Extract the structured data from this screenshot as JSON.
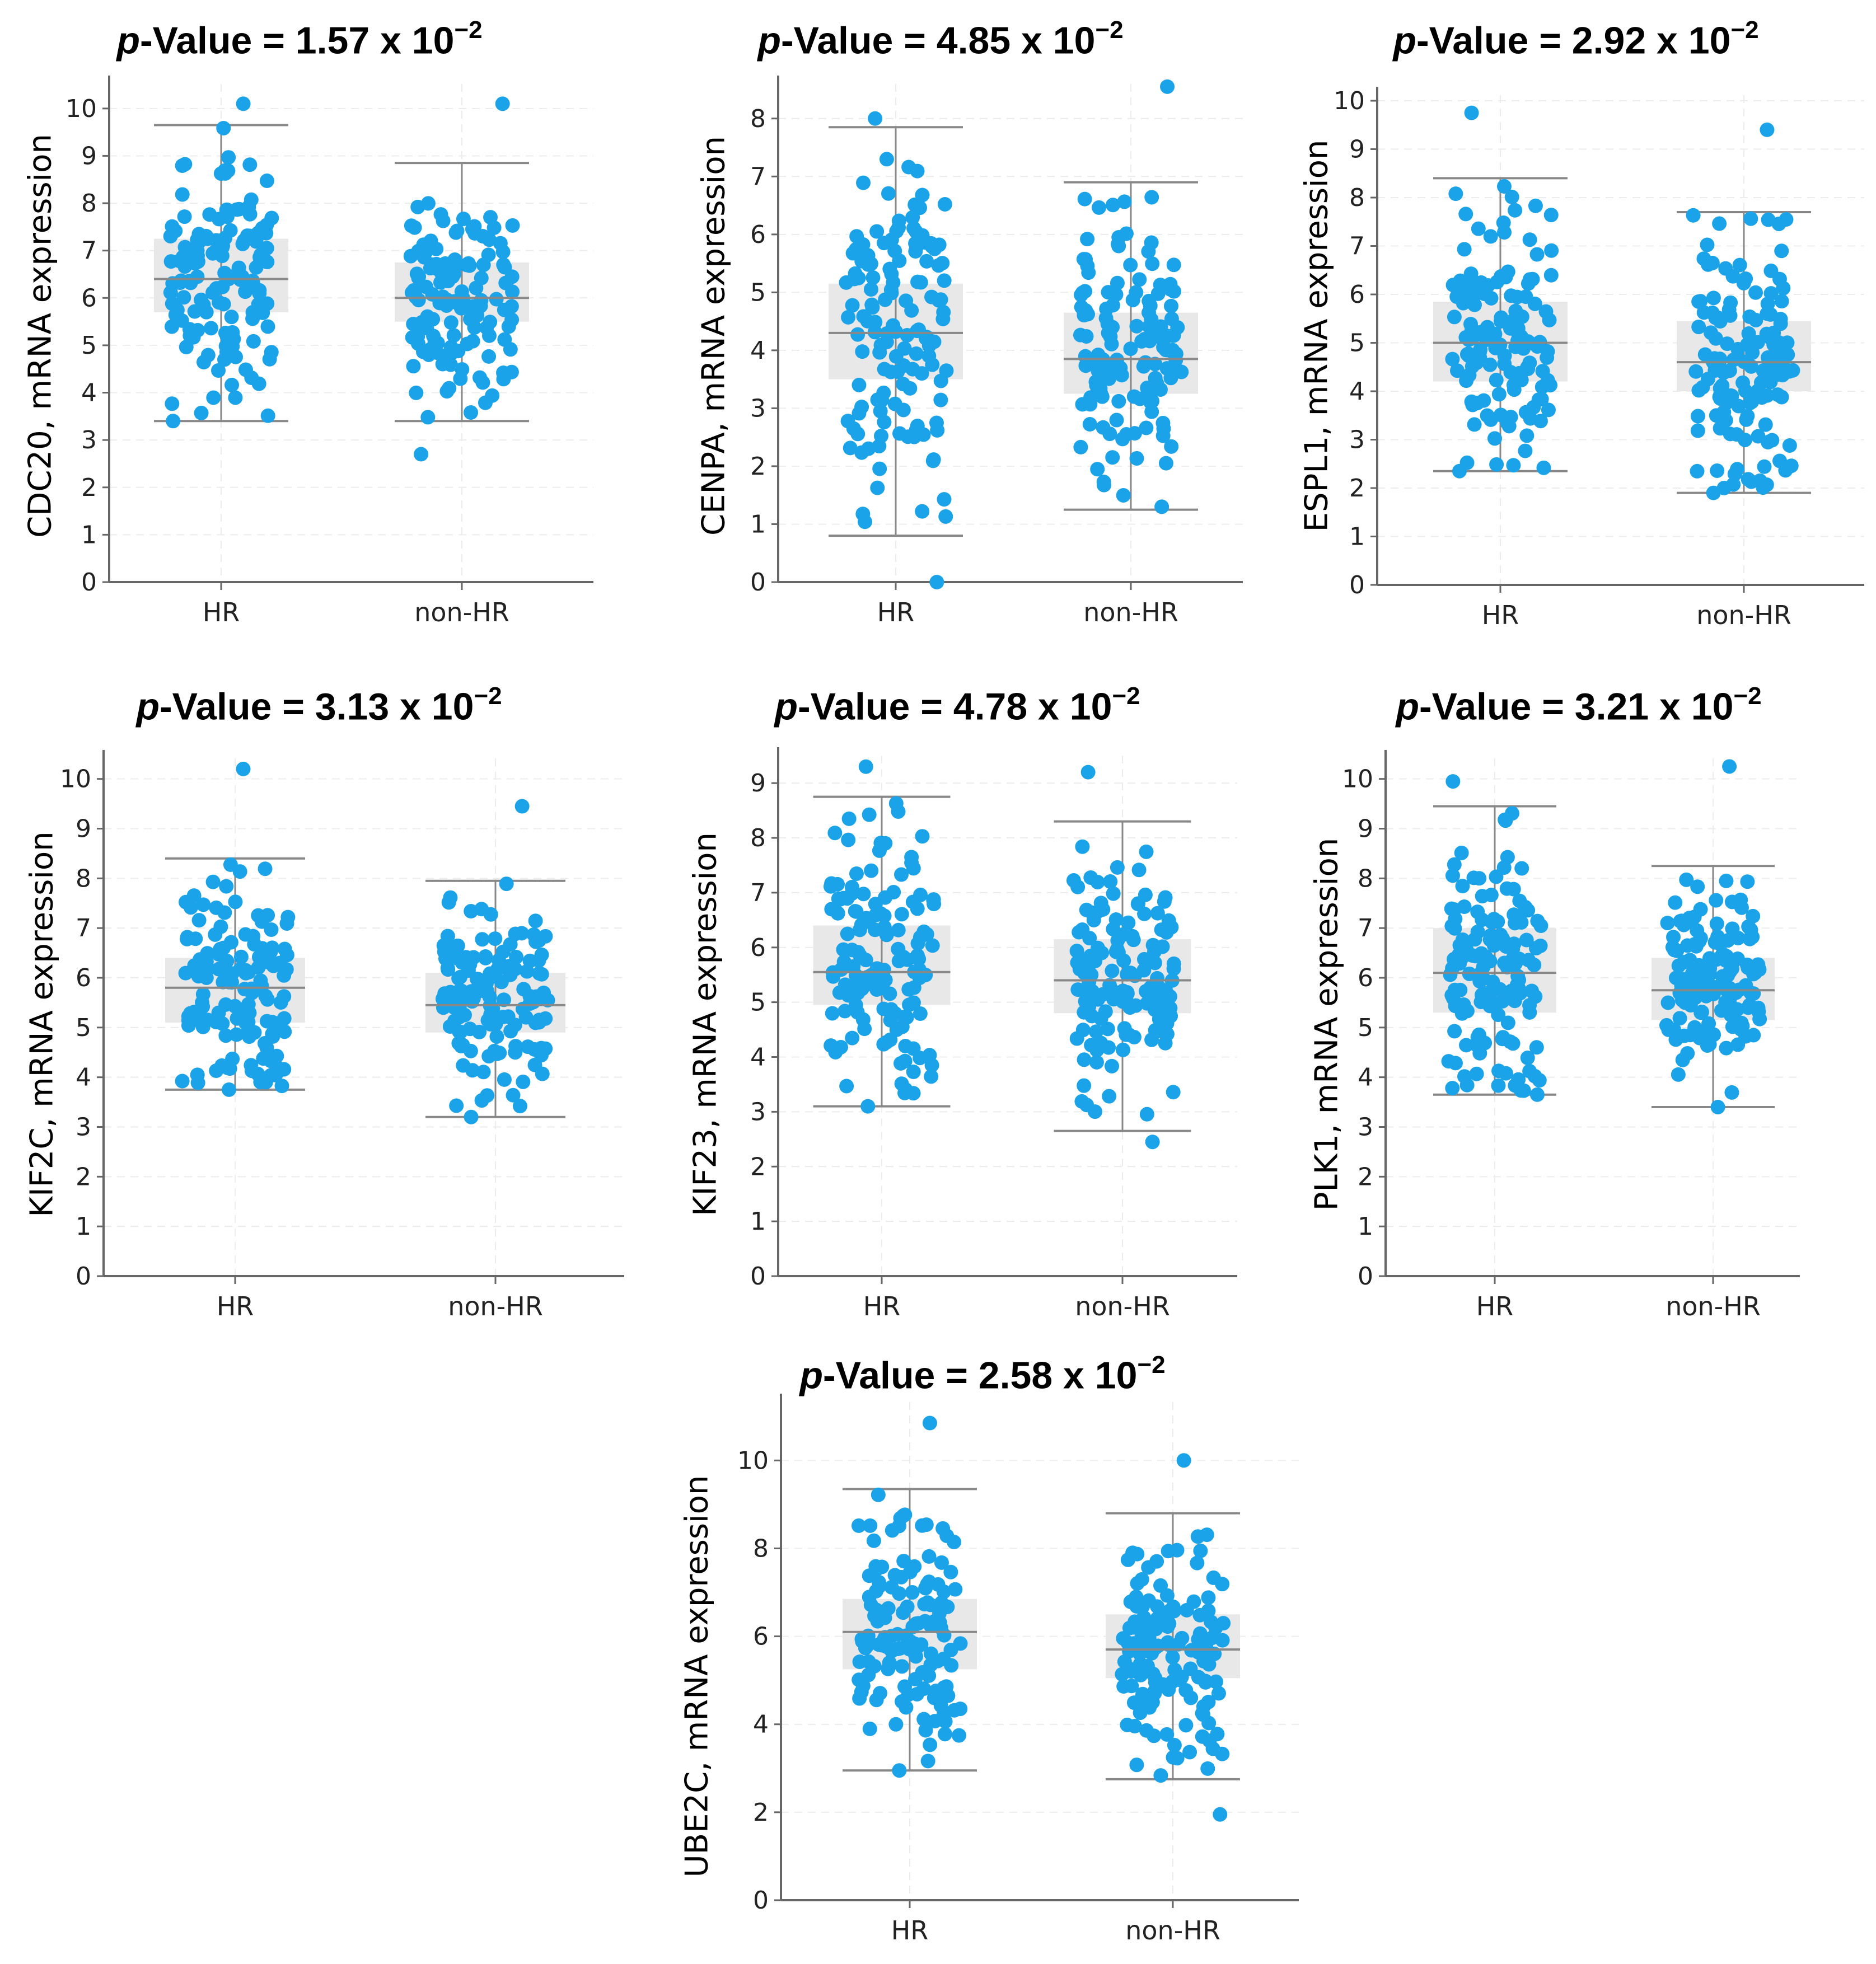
{
  "style": {
    "dot_color": "#1aa3e8",
    "box_color": "#e8e8e8",
    "line_color": "#888888"
  },
  "chart_data": [
    {
      "type": "box-scatter",
      "gene": "CDC20",
      "ylabel": "CDC20, mRNA expression",
      "pvalue": {
        "prefix": "p",
        "rest": "-Value = 1.57 x 10",
        "exp": "−2"
      },
      "categories": [
        "HR",
        "non-HR"
      ],
      "ylim": [
        0,
        10.4
      ],
      "yticks": [
        0,
        1,
        2,
        3,
        4,
        5,
        6,
        7,
        8,
        9,
        10
      ],
      "groups": [
        {
          "name": "HR",
          "whisker_low": 3.4,
          "q1": 5.7,
          "median": 6.4,
          "q3": 7.25,
          "whisker_high": 9.65,
          "min": 3.4,
          "max": 10.1,
          "n": 140
        },
        {
          "name": "non-HR",
          "whisker_low": 3.4,
          "q1": 5.5,
          "median": 6.0,
          "q3": 6.75,
          "whisker_high": 8.85,
          "min": 2.7,
          "max": 10.1,
          "n": 140
        }
      ]
    },
    {
      "type": "box-scatter",
      "gene": "CENPA",
      "ylabel": "CENPA, mRNA expression",
      "pvalue": {
        "prefix": "p",
        "rest": "-Value = 4.85 x 10",
        "exp": "−2"
      },
      "categories": [
        "HR",
        "non-HR"
      ],
      "ylim": [
        0,
        8.5
      ],
      "yticks": [
        0,
        1,
        2,
        3,
        4,
        5,
        6,
        7,
        8
      ],
      "groups": [
        {
          "name": "HR",
          "whisker_low": 0.8,
          "q1": 3.5,
          "median": 4.3,
          "q3": 5.15,
          "whisker_high": 7.85,
          "min": 0.0,
          "max": 8.0,
          "n": 140
        },
        {
          "name": "non-HR",
          "whisker_low": 1.25,
          "q1": 3.25,
          "median": 3.85,
          "q3": 4.65,
          "whisker_high": 6.9,
          "min": 1.3,
          "max": 8.55,
          "n": 140
        }
      ]
    },
    {
      "type": "box-scatter",
      "gene": "ESPL1",
      "ylabel": "ESPL1, mRNA expression",
      "pvalue": {
        "prefix": "p",
        "rest": "-Value = 2.92 x 10",
        "exp": "−2"
      },
      "categories": [
        "HR",
        "non-HR"
      ],
      "ylim": [
        0,
        10
      ],
      "yticks": [
        0,
        1,
        2,
        3,
        4,
        5,
        6,
        7,
        8,
        9,
        10
      ],
      "groups": [
        {
          "name": "HR",
          "whisker_low": 2.35,
          "q1": 4.2,
          "median": 5.0,
          "q3": 5.85,
          "whisker_high": 8.4,
          "min": 2.35,
          "max": 9.75,
          "n": 140
        },
        {
          "name": "non-HR",
          "whisker_low": 1.9,
          "q1": 4.0,
          "median": 4.6,
          "q3": 5.45,
          "whisker_high": 7.7,
          "min": 1.9,
          "max": 9.4,
          "n": 140
        }
      ]
    },
    {
      "type": "box-scatter",
      "gene": "KIF2C",
      "ylabel": "KIF2C, mRNA expression",
      "pvalue": {
        "prefix": "p",
        "rest": "-Value = 3.13 x 10",
        "exp": "−2"
      },
      "categories": [
        "HR",
        "non-HR"
      ],
      "ylim": [
        0,
        10.3
      ],
      "yticks": [
        0,
        1,
        2,
        3,
        4,
        5,
        6,
        7,
        8,
        9,
        10
      ],
      "groups": [
        {
          "name": "HR",
          "whisker_low": 3.75,
          "q1": 5.1,
          "median": 5.8,
          "q3": 6.4,
          "whisker_high": 8.4,
          "min": 3.75,
          "max": 10.2,
          "n": 140
        },
        {
          "name": "non-HR",
          "whisker_low": 3.2,
          "q1": 4.9,
          "median": 5.45,
          "q3": 6.1,
          "whisker_high": 7.95,
          "min": 3.2,
          "max": 9.45,
          "n": 140
        }
      ]
    },
    {
      "type": "box-scatter",
      "gene": "KIF23",
      "ylabel": "KIF23, mRNA expression",
      "pvalue": {
        "prefix": "p",
        "rest": "-Value = 4.78 x 10",
        "exp": "−2"
      },
      "categories": [
        "HR",
        "non-HR"
      ],
      "ylim": [
        0,
        9.4
      ],
      "yticks": [
        0,
        1,
        2,
        3,
        4,
        5,
        6,
        7,
        8,
        9
      ],
      "groups": [
        {
          "name": "HR",
          "whisker_low": 3.1,
          "q1": 4.95,
          "median": 5.55,
          "q3": 6.4,
          "whisker_high": 8.75,
          "min": 3.1,
          "max": 9.3,
          "n": 140
        },
        {
          "name": "non-HR",
          "whisker_low": 2.65,
          "q1": 4.8,
          "median": 5.4,
          "q3": 6.15,
          "whisker_high": 8.3,
          "min": 2.45,
          "max": 9.2,
          "n": 140
        }
      ]
    },
    {
      "type": "box-scatter",
      "gene": "PLK1",
      "ylabel": "PLK1, mRNA expression",
      "pvalue": {
        "prefix": "p",
        "rest": "-Value = 3.21 x 10",
        "exp": "−2"
      },
      "categories": [
        "HR",
        "non-HR"
      ],
      "ylim": [
        0,
        10.3
      ],
      "yticks": [
        0,
        1,
        2,
        3,
        4,
        5,
        6,
        7,
        8,
        9,
        10
      ],
      "groups": [
        {
          "name": "HR",
          "whisker_low": 3.65,
          "q1": 5.3,
          "median": 6.1,
          "q3": 7.0,
          "whisker_high": 9.45,
          "min": 3.65,
          "max": 9.95,
          "n": 140
        },
        {
          "name": "non-HR",
          "whisker_low": 3.4,
          "q1": 5.15,
          "median": 5.75,
          "q3": 6.4,
          "whisker_high": 8.25,
          "min": 3.4,
          "max": 10.25,
          "n": 140
        }
      ]
    },
    {
      "type": "box-scatter",
      "gene": "UBE2C",
      "ylabel": "UBE2C, mRNA expression",
      "pvalue": {
        "prefix": "p",
        "rest": "-Value = 2.58 x 10",
        "exp": "−2"
      },
      "categories": [
        "HR",
        "non-HR"
      ],
      "ylim": [
        0,
        11.2
      ],
      "yticks": [
        0,
        2,
        4,
        6,
        8,
        10
      ],
      "groups": [
        {
          "name": "HR",
          "whisker_low": 2.95,
          "q1": 5.25,
          "median": 6.1,
          "q3": 6.85,
          "whisker_high": 9.35,
          "min": 2.95,
          "max": 10.85,
          "n": 140
        },
        {
          "name": "non-HR",
          "whisker_low": 2.75,
          "q1": 5.05,
          "median": 5.7,
          "q3": 6.5,
          "whisker_high": 8.8,
          "min": 1.95,
          "max": 10.0,
          "n": 140
        }
      ]
    }
  ]
}
